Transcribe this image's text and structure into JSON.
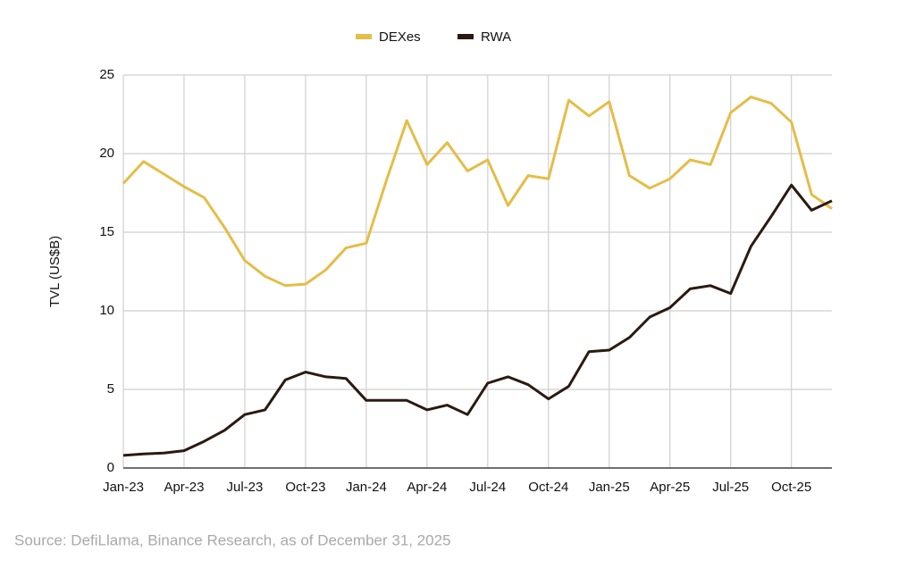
{
  "chart_data": {
    "type": "line",
    "categories": [
      "Jan-23",
      null,
      null,
      "Apr-23",
      null,
      null,
      "Jul-23",
      null,
      null,
      "Oct-23",
      null,
      null,
      "Jan-24",
      null,
      null,
      "Apr-24",
      null,
      null,
      "Jul-24",
      null,
      null,
      "Oct-24",
      null,
      null,
      "Jan-25",
      null,
      null,
      "Apr-25",
      null,
      null,
      "Jul-25",
      null,
      null,
      "Oct-25",
      null,
      null
    ],
    "series": [
      {
        "name": "DEXes",
        "color": "#e5bd47",
        "values": [
          18.1,
          19.5,
          18.7,
          17.9,
          17.2,
          15.3,
          13.2,
          12.2,
          11.6,
          11.7,
          12.6,
          14.0,
          14.3,
          18.3,
          22.1,
          19.3,
          20.7,
          18.9,
          19.6,
          16.7,
          18.6,
          18.4,
          23.4,
          22.4,
          23.3,
          18.6,
          17.8,
          18.4,
          19.6,
          19.3,
          22.6,
          23.6,
          23.2,
          22.0,
          17.4,
          16.5
        ]
      },
      {
        "name": "RWA",
        "color": "#2a1a12",
        "values": [
          0.8,
          0.9,
          0.95,
          1.1,
          1.7,
          2.4,
          3.4,
          3.7,
          5.6,
          6.1,
          5.8,
          5.7,
          4.3,
          4.3,
          4.3,
          3.7,
          4.0,
          3.4,
          5.4,
          5.8,
          5.3,
          4.4,
          5.2,
          7.4,
          7.5,
          8.3,
          9.6,
          10.2,
          11.4,
          11.6,
          11.1,
          14.1,
          16.0,
          18.0,
          16.4,
          17.0
        ]
      }
    ],
    "y_label": "TVL (US$B)",
    "ylim": [
      0,
      25
    ],
    "yticks": [
      0,
      5,
      10,
      15,
      20,
      25
    ],
    "grid": true,
    "legend": "top",
    "source": "Source: DefiLlama, Binance Research, as of December 31, 2025"
  }
}
